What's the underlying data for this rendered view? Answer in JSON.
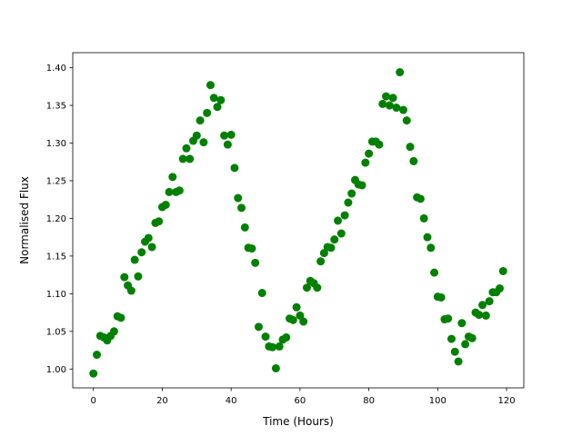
{
  "chart_data": {
    "type": "scatter",
    "title": "",
    "xlabel": "Time (Hours)",
    "ylabel": "Normalised Flux",
    "xlim": [
      -6,
      125
    ],
    "ylim": [
      0.975,
      1.42
    ],
    "x_ticks": [
      0,
      20,
      40,
      60,
      80,
      100,
      120
    ],
    "x_tick_labels": [
      "0",
      "20",
      "40",
      "60",
      "80",
      "100",
      "120"
    ],
    "y_ticks": [
      1.0,
      1.05,
      1.1,
      1.15,
      1.2,
      1.25,
      1.3,
      1.35,
      1.4
    ],
    "y_tick_labels": [
      "1.00",
      "1.05",
      "1.10",
      "1.15",
      "1.20",
      "1.25",
      "1.30",
      "1.35",
      "1.40"
    ],
    "grid": false,
    "legend": "none",
    "marker_color": "#008000",
    "series": [
      {
        "x": [
          0,
          1,
          2,
          3,
          4,
          5,
          6,
          7,
          8,
          9,
          10,
          11,
          12,
          13,
          14,
          15,
          16,
          17,
          18,
          19,
          20,
          21,
          22,
          23,
          24,
          25,
          26,
          27,
          28,
          29,
          30,
          31,
          32,
          33,
          34,
          35,
          36,
          37,
          38,
          39,
          40,
          41,
          42,
          43,
          44,
          45,
          46,
          47,
          48,
          49,
          50,
          51,
          52,
          53,
          54,
          55,
          56,
          57,
          58,
          59,
          60,
          61,
          62,
          63,
          64,
          65,
          66,
          67,
          68,
          69,
          70,
          71,
          72,
          73,
          74,
          75,
          76,
          77,
          78,
          79,
          80,
          81,
          82,
          83,
          84,
          85,
          86,
          87,
          88,
          89,
          90,
          91,
          92,
          93,
          94,
          95,
          96,
          97,
          98,
          99,
          100,
          101,
          102,
          103,
          104,
          105,
          106,
          107,
          108,
          109,
          110,
          111,
          112,
          113,
          114,
          115,
          116,
          117,
          118,
          119
        ],
        "y": [
          0.994,
          1.019,
          1.044,
          1.042,
          1.038,
          1.044,
          1.05,
          1.07,
          1.068,
          1.122,
          1.111,
          1.104,
          1.145,
          1.123,
          1.155,
          1.169,
          1.174,
          1.162,
          1.194,
          1.196,
          1.215,
          1.218,
          1.235,
          1.255,
          1.235,
          1.237,
          1.279,
          1.293,
          1.279,
          1.303,
          1.31,
          1.33,
          1.301,
          1.34,
          1.377,
          1.36,
          1.348,
          1.357,
          1.31,
          1.298,
          1.311,
          1.267,
          1.227,
          1.214,
          1.188,
          1.161,
          1.16,
          1.141,
          1.056,
          1.101,
          1.043,
          1.03,
          1.029,
          1.001,
          1.03,
          1.039,
          1.042,
          1.067,
          1.065,
          1.082,
          1.071,
          1.063,
          1.108,
          1.117,
          1.114,
          1.108,
          1.143,
          1.154,
          1.162,
          1.161,
          1.172,
          1.197,
          1.18,
          1.204,
          1.221,
          1.233,
          1.251,
          1.245,
          1.244,
          1.274,
          1.286,
          1.302,
          1.302,
          1.298,
          1.352,
          1.362,
          1.35,
          1.36,
          1.347,
          1.394,
          1.344,
          1.33,
          1.295,
          1.276,
          1.228,
          1.226,
          1.2,
          1.175,
          1.161,
          1.128,
          1.096,
          1.095,
          1.066,
          1.067,
          1.04,
          1.023,
          1.01,
          1.061,
          1.033,
          1.043,
          1.041,
          1.075,
          1.072,
          1.085,
          1.071,
          1.09,
          1.102,
          1.102,
          1.107,
          1.13
        ]
      }
    ]
  }
}
